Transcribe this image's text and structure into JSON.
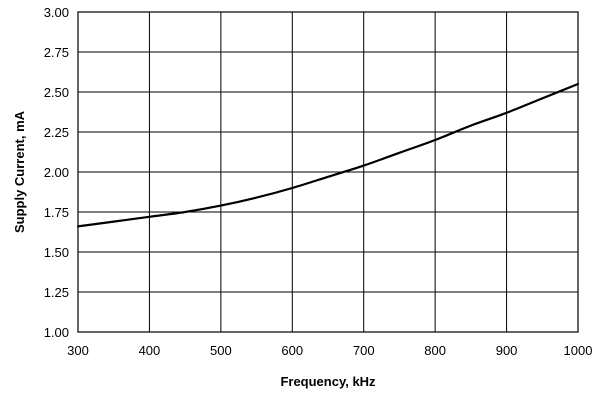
{
  "chart_data": {
    "type": "line",
    "title": "",
    "xlabel": "Frequency, kHz",
    "ylabel": "Supply Current, mA",
    "xlim": [
      300,
      1000
    ],
    "ylim": [
      1.0,
      3.0
    ],
    "xticks": [
      300,
      400,
      500,
      600,
      700,
      800,
      900,
      1000
    ],
    "yticks": [
      1.0,
      1.25,
      1.5,
      1.75,
      2.0,
      2.25,
      2.5,
      2.75,
      3.0
    ],
    "xtick_labels": [
      "300",
      "400",
      "500",
      "600",
      "700",
      "800",
      "900",
      "1000"
    ],
    "ytick_labels": [
      "1.00",
      "1.25",
      "1.50",
      "1.75",
      "2.00",
      "2.25",
      "2.50",
      "2.75",
      "3.00"
    ],
    "grid": true,
    "series": [
      {
        "x": [
          300,
          350,
          400,
          450,
          500,
          550,
          600,
          650,
          700,
          750,
          800,
          850,
          900,
          950,
          1000
        ],
        "values": [
          1.66,
          1.69,
          1.72,
          1.75,
          1.79,
          1.84,
          1.9,
          1.97,
          2.04,
          2.12,
          2.2,
          2.29,
          2.37,
          2.46,
          2.55
        ]
      }
    ]
  }
}
